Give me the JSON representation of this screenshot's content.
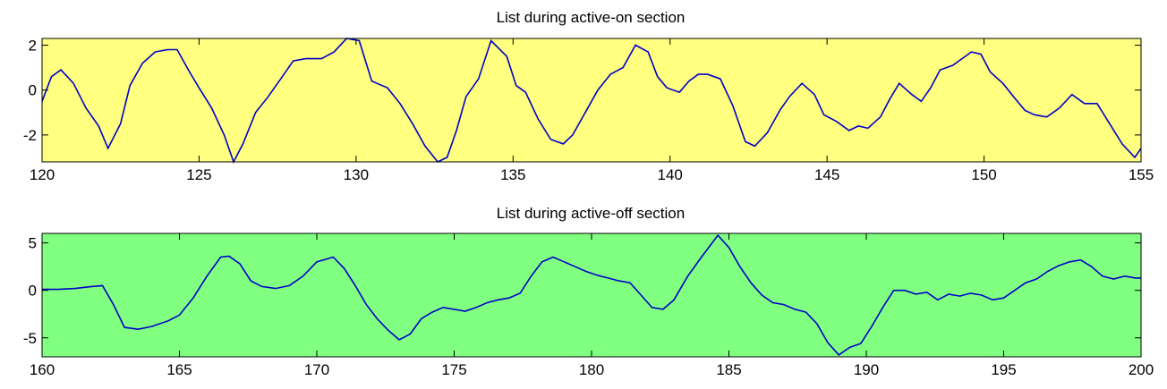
{
  "chart_data": [
    {
      "type": "line",
      "title": "List during active-on section",
      "background": "#ffff80",
      "line_color": "#0000c8",
      "xlim": [
        120,
        155
      ],
      "ylim": [
        -3.2,
        2.3
      ],
      "xticks": [
        120,
        125,
        130,
        135,
        140,
        145,
        150,
        155
      ],
      "yticks": [
        -2,
        0,
        2
      ],
      "grid": false,
      "series": [
        {
          "x": [
            120.0,
            120.3,
            120.6,
            121.0,
            121.4,
            121.8,
            122.1,
            122.5,
            122.8,
            123.2,
            123.6,
            124.0,
            124.3,
            124.7,
            125.0,
            125.4,
            125.8,
            126.1,
            126.4,
            126.8,
            127.2,
            127.6,
            128.0,
            128.4,
            128.9,
            129.3,
            129.7,
            130.1,
            130.5,
            131.0,
            131.4,
            131.8,
            132.2,
            132.6,
            132.9,
            133.2,
            133.5,
            133.9,
            134.3,
            134.8,
            135.1,
            135.4,
            135.8,
            136.2,
            136.6,
            136.9,
            137.3,
            137.7,
            138.1,
            138.5,
            138.9,
            139.3,
            139.6,
            139.9,
            140.3,
            140.6,
            140.9,
            141.2,
            141.6,
            142.0,
            142.4,
            142.7,
            143.1,
            143.5,
            143.8,
            144.2,
            144.6,
            144.9,
            145.3,
            145.7,
            146.0,
            146.3,
            146.7,
            147.0,
            147.3,
            147.7,
            148.0,
            148.3,
            148.6,
            149.0,
            149.3,
            149.6,
            149.9,
            150.2,
            150.6,
            151.0,
            151.3,
            151.6,
            152.0,
            152.4,
            152.8,
            153.2,
            153.6,
            154.0,
            154.4,
            154.8,
            155.0
          ],
          "y": [
            -0.5,
            0.6,
            0.9,
            0.3,
            -0.8,
            -1.6,
            -2.6,
            -1.5,
            0.2,
            1.2,
            1.7,
            1.8,
            1.8,
            0.8,
            0.1,
            -0.8,
            -2.0,
            -3.2,
            -2.4,
            -1.0,
            -0.3,
            0.5,
            1.3,
            1.4,
            1.4,
            1.7,
            2.3,
            2.2,
            0.4,
            0.1,
            -0.6,
            -1.5,
            -2.5,
            -3.2,
            -3.0,
            -1.8,
            -0.3,
            0.5,
            2.2,
            1.5,
            0.2,
            -0.1,
            -1.3,
            -2.2,
            -2.4,
            -2.0,
            -1.0,
            0.0,
            0.7,
            1.0,
            2.0,
            1.7,
            0.6,
            0.1,
            -0.1,
            0.4,
            0.7,
            0.7,
            0.5,
            -0.7,
            -2.3,
            -2.5,
            -1.9,
            -0.9,
            -0.3,
            0.3,
            -0.2,
            -1.1,
            -1.4,
            -1.8,
            -1.6,
            -1.7,
            -1.2,
            -0.4,
            0.3,
            -0.2,
            -0.5,
            0.1,
            0.9,
            1.1,
            1.4,
            1.7,
            1.6,
            0.8,
            0.3,
            -0.4,
            -0.9,
            -1.1,
            -1.2,
            -0.8,
            -0.2,
            -0.6,
            -0.6,
            -1.5,
            -2.4,
            -3.0,
            -2.6
          ]
        }
      ]
    },
    {
      "type": "line",
      "title": "List during active-off section",
      "background": "#80ff80",
      "line_color": "#0000c8",
      "xlim": [
        160,
        200
      ],
      "ylim": [
        -7,
        6
      ],
      "xticks": [
        160,
        165,
        170,
        175,
        180,
        185,
        190,
        195,
        200
      ],
      "yticks": [
        -5,
        0,
        5
      ],
      "grid": false,
      "series": [
        {
          "x": [
            160.0,
            160.6,
            161.2,
            161.8,
            162.2,
            162.6,
            163.0,
            163.5,
            164.0,
            164.6,
            165.0,
            165.5,
            166.0,
            166.5,
            166.8,
            167.2,
            167.6,
            168.0,
            168.5,
            169.0,
            169.5,
            170.0,
            170.6,
            171.0,
            171.4,
            171.8,
            172.2,
            172.6,
            173.0,
            173.4,
            173.8,
            174.2,
            174.6,
            175.0,
            175.4,
            175.8,
            176.2,
            176.6,
            177.0,
            177.4,
            177.8,
            178.2,
            178.6,
            179.0,
            179.4,
            179.8,
            180.2,
            180.6,
            181.0,
            181.4,
            181.8,
            182.2,
            182.6,
            183.0,
            183.5,
            184.0,
            184.6,
            185.0,
            185.4,
            185.8,
            186.2,
            186.6,
            187.0,
            187.4,
            187.8,
            188.2,
            188.6,
            189.0,
            189.4,
            189.8,
            190.2,
            190.6,
            191.0,
            191.4,
            191.8,
            192.2,
            192.6,
            193.0,
            193.4,
            193.8,
            194.2,
            194.6,
            195.0,
            195.4,
            195.8,
            196.2,
            196.6,
            197.0,
            197.4,
            197.8,
            198.2,
            198.6,
            199.0,
            199.4,
            199.8,
            200.0
          ],
          "y": [
            0.1,
            0.1,
            0.2,
            0.4,
            0.5,
            -1.5,
            -3.9,
            -4.1,
            -3.8,
            -3.2,
            -2.6,
            -0.8,
            1.5,
            3.5,
            3.6,
            2.8,
            1.0,
            0.4,
            0.2,
            0.5,
            1.5,
            3.0,
            3.5,
            2.3,
            0.5,
            -1.5,
            -3.0,
            -4.2,
            -5.2,
            -4.6,
            -3.0,
            -2.3,
            -1.8,
            -2.0,
            -2.2,
            -1.8,
            -1.3,
            -1.0,
            -0.8,
            -0.3,
            1.5,
            3.0,
            3.5,
            3.0,
            2.5,
            2.0,
            1.6,
            1.3,
            1.0,
            0.8,
            -0.5,
            -1.8,
            -2.0,
            -1.0,
            1.5,
            3.5,
            5.8,
            4.5,
            2.5,
            0.8,
            -0.5,
            -1.3,
            -1.5,
            -2.0,
            -2.3,
            -3.5,
            -5.5,
            -6.8,
            -6.0,
            -5.6,
            -3.8,
            -1.8,
            0.0,
            0.0,
            -0.4,
            -0.2,
            -1.0,
            -0.4,
            -0.6,
            -0.3,
            -0.5,
            -1.0,
            -0.8,
            0.0,
            0.8,
            1.2,
            2.0,
            2.6,
            3.0,
            3.2,
            2.5,
            1.5,
            1.2,
            1.5,
            1.3,
            1.3
          ]
        }
      ]
    }
  ]
}
